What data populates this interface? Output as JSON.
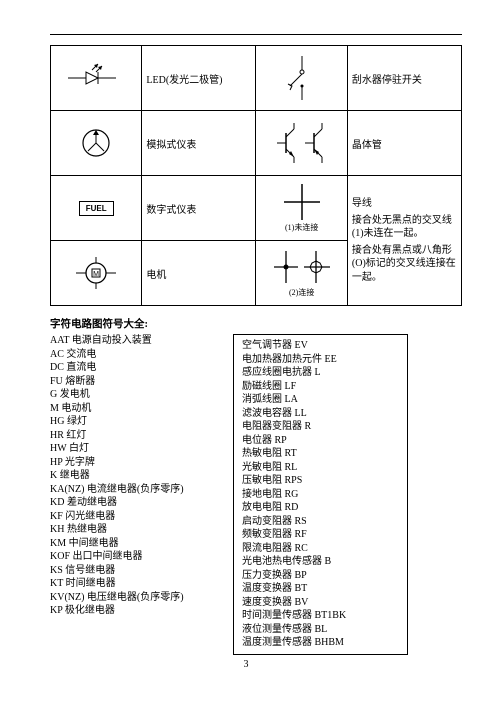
{
  "ruleColor": "#000000",
  "symbolTable": {
    "rows": [
      {
        "symbol": "led",
        "label": "LED(发光二极管)",
        "symbol2": "wiper-switch",
        "label2": "刮水器停驻开关"
      },
      {
        "symbol": "analog-gauge",
        "label": "模拟式仪表",
        "symbol2": "transistor-pair",
        "label2": "晶体管"
      },
      {
        "symbol": "digital-gauge",
        "label": "数字式仪表",
        "symbol2": "wire-nc",
        "label2": "",
        "caption2": "(1)未连接"
      },
      {
        "symbol": "motor",
        "label": "电机",
        "symbol2": "wire-c",
        "label2": "",
        "caption2": "(2)连接"
      }
    ],
    "rightMerged": [
      "导线",
      "接合处无黑点的交叉线(1)未连在一起。",
      "接合处有黑点或八角形(O)标记的交叉线连接在一起。"
    ]
  },
  "legendTitle": "字符电路图符号大全:",
  "legendLeft": [
    "AAT 电源自动投入装置",
    "AC 交流电",
    "DC 直流电",
    "FU 熔断器",
    "G 发电机",
    "M 电动机",
    "HG 绿灯",
    "HR 红灯",
    "HW 白灯",
    "HP 光字牌",
    "K 继电器",
    "KA(NZ) 电流继电器(负序零序)",
    "KD 差动继电器",
    "KF 闪光继电器",
    "KH 热继电器",
    "KM 中间继电器",
    "KOF 出口中间继电器",
    "KS 信号继电器",
    "KT 时间继电器",
    "KV(NZ) 电压继电器(负序零序)",
    "KP 极化继电器"
  ],
  "legendRight": [
    "空气调节器 EV",
    "电加热器加热元件 EE",
    "感应线圈电抗器 L",
    "励磁线圈 LF",
    "消弧线圈 LA",
    "滤波电容器 LL",
    "电阻器变阻器 R",
    "电位器 RP",
    "热敏电阻 RT",
    "光敏电阻 RL",
    "压敏电阻 RPS",
    "接地电阻 RG",
    "放电电阻 RD",
    "启动变阻器 RS",
    "频敏变阻器 RF",
    "限流电阻器 RC",
    "光电池热电传感器 B",
    "压力变换器 BP",
    "温度变换器 BT",
    "速度变换器 BV",
    "时间测量传感器 BT1BK",
    "液位测量传感器 BL",
    "温度测量传感器 BHBM"
  ],
  "pageNumber": "3"
}
